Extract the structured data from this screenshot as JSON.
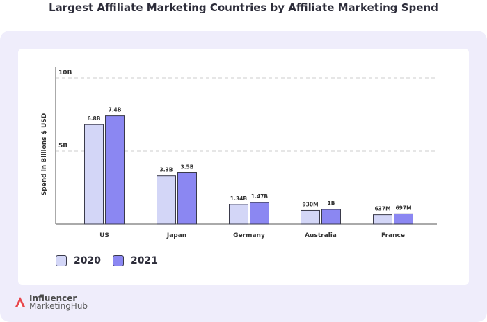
{
  "chart_data": {
    "type": "bar",
    "title": "Largest Affiliate Marketing Countries by Affiliate Marketing Spend",
    "ylabel": "Spend in Billions $ USD",
    "xlabel": "",
    "ylim": [
      0,
      10
    ],
    "yticks": [
      {
        "value": 5,
        "label": "5B"
      },
      {
        "value": 10,
        "label": "10B"
      }
    ],
    "categories": [
      "US",
      "Japan",
      "Germany",
      "Australia",
      "France"
    ],
    "series": [
      {
        "name": "2020",
        "color": "#d3d6f7",
        "values": [
          6.8,
          3.3,
          1.34,
          0.93,
          0.637
        ],
        "labels": [
          "6.8B",
          "3.3B",
          "1.34B",
          "930M",
          "637M"
        ]
      },
      {
        "name": "2021",
        "color": "#8b87f2",
        "values": [
          7.4,
          3.5,
          1.47,
          1.0,
          0.697
        ],
        "labels": [
          "7.4B",
          "3.5B",
          "1.47B",
          "1B",
          "697M"
        ]
      }
    ],
    "grid": true,
    "legend_position": "bottom-left"
  },
  "legend": {
    "item1": "2020",
    "item2": "2021"
  },
  "brand": {
    "line1": "Influencer",
    "line2": "MarketingHub",
    "color": "#e8474d"
  }
}
